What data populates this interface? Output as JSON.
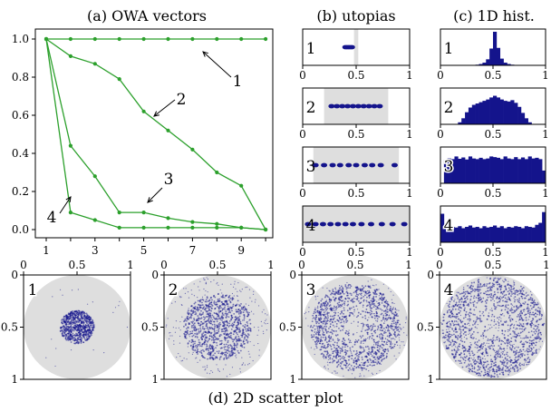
{
  "titles": {
    "a": "(a) OWA vectors",
    "b": "(b) utopias",
    "c": "(c) 1D hist.",
    "d": "(d) 2D scatter plot"
  },
  "colors": {
    "line": "#2ca02c",
    "dots": "#14148c",
    "grey": "#dedede",
    "frame": "#000000"
  },
  "chart_data": [
    {
      "type": "line",
      "panel": "a",
      "title": "(a) OWA vectors",
      "x": [
        1,
        2,
        3,
        4,
        5,
        6,
        7,
        8,
        9,
        10
      ],
      "xticks": [
        "1",
        "3",
        "5",
        "7",
        "9"
      ],
      "yticks": [
        "0.0",
        "0.2",
        "0.4",
        "0.6",
        "0.8",
        "1.0"
      ],
      "ylim": [
        0,
        1
      ],
      "series": [
        {
          "name": "1",
          "values": [
            1,
            1,
            1,
            1,
            1,
            1,
            1,
            1,
            1,
            1
          ]
        },
        {
          "name": "2",
          "values": [
            1,
            0.91,
            0.87,
            0.79,
            0.62,
            0.52,
            0.42,
            0.3,
            0.23,
            0
          ]
        },
        {
          "name": "3",
          "values": [
            1,
            0.44,
            0.28,
            0.09,
            0.09,
            0.06,
            0.04,
            0.03,
            0.01,
            0
          ]
        },
        {
          "name": "4",
          "values": [
            1,
            0.09,
            0.05,
            0.01,
            0.01,
            0.01,
            0.01,
            0.01,
            0.01,
            0
          ]
        }
      ],
      "annotations": [
        "1",
        "2",
        "3",
        "4"
      ]
    },
    {
      "type": "scatter",
      "panel": "b",
      "title": "(b) utopias",
      "xticks": [
        "0",
        "0.5",
        "1"
      ],
      "rows": [
        {
          "label": "1",
          "shaded": [
            0.48,
            0.52
          ],
          "points": [
            0.4,
            0.42,
            0.44,
            0.46
          ]
        },
        {
          "label": "2",
          "shaded": [
            0.2,
            0.8
          ],
          "points": [
            0.27,
            0.32,
            0.37,
            0.42,
            0.47,
            0.52,
            0.57,
            0.62,
            0.67,
            0.72
          ]
        },
        {
          "label": "3",
          "shaded": [
            0.1,
            0.9
          ],
          "points": [
            0.12,
            0.2,
            0.28,
            0.35,
            0.43,
            0.5,
            0.58,
            0.65,
            0.73,
            0.86
          ]
        },
        {
          "label": "4",
          "shaded": [
            0,
            1
          ],
          "points": [
            0.05,
            0.12,
            0.19,
            0.26,
            0.33,
            0.4,
            0.47,
            0.55,
            0.64,
            0.74,
            0.84,
            0.95
          ]
        }
      ]
    },
    {
      "type": "bar",
      "panel": "c",
      "title": "(c) 1D hist.",
      "xticks": [
        "0",
        "0.5",
        "1"
      ],
      "bins": 30,
      "rows": [
        {
          "label": "1",
          "values": [
            0,
            0,
            0,
            0,
            0,
            0,
            0,
            0,
            0,
            0.01,
            0.02,
            0.04,
            0.08,
            0.18,
            0.5,
            1,
            0.52,
            0.2,
            0.08,
            0.04,
            0.02,
            0.01,
            0,
            0,
            0,
            0,
            0,
            0,
            0,
            0
          ]
        },
        {
          "label": "2",
          "values": [
            0,
            0,
            0,
            0,
            0,
            0.06,
            0.18,
            0.36,
            0.5,
            0.58,
            0.62,
            0.66,
            0.7,
            0.74,
            0.8,
            0.85,
            0.8,
            0.74,
            0.7,
            0.68,
            0.72,
            0.64,
            0.52,
            0.34,
            0.18,
            0.06,
            0,
            0,
            0,
            0
          ]
        },
        {
          "label": "3",
          "values": [
            0,
            0.7,
            0.74,
            0.72,
            0.8,
            0.73,
            0.77,
            0.71,
            0.8,
            0.74,
            0.72,
            0.76,
            0.72,
            0.74,
            0.8,
            0.78,
            0.76,
            0.72,
            0.8,
            0.74,
            0.72,
            0.78,
            0.72,
            0.77,
            0.72,
            0.8,
            0.74,
            0.76,
            0.72,
            0.38
          ]
        },
        {
          "label": "4",
          "values": [
            0.85,
            0.5,
            0.42,
            0.46,
            0.44,
            0.48,
            0.42,
            0.46,
            0.5,
            0.44,
            0.46,
            0.42,
            0.48,
            0.44,
            0.46,
            0.5,
            0.44,
            0.48,
            0.42,
            0.46,
            0.44,
            0.48,
            0.46,
            0.42,
            0.48,
            0.46,
            0.44,
            0.52,
            0.58,
            0.9
          ]
        }
      ]
    },
    {
      "type": "scatter",
      "panel": "d",
      "title": "(d) 2D scatter plot",
      "xticks": [
        "0",
        "0.5",
        "1"
      ],
      "yticks": [
        "0",
        "0.5",
        "1"
      ],
      "plots": [
        {
          "label": "1",
          "disk_radius": 0.5,
          "cloud_radius": 0.16
        },
        {
          "label": "2",
          "disk_radius": 0.5,
          "cloud_radius": 0.32
        },
        {
          "label": "3",
          "disk_radius": 0.5,
          "cloud_radius": 0.42
        },
        {
          "label": "4",
          "disk_radius": 0.5,
          "cloud_radius": 0.48
        }
      ]
    }
  ]
}
